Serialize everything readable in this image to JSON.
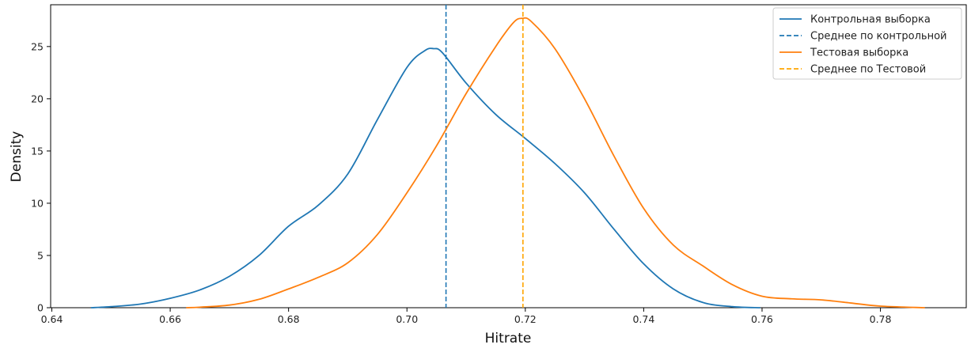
{
  "chart_data": {
    "type": "line",
    "xlabel": "Hitrate",
    "ylabel": "Density",
    "xlim": [
      0.6398,
      0.7945
    ],
    "ylim": [
      0,
      29
    ],
    "xticks": [
      0.64,
      0.66,
      0.68,
      0.7,
      0.72,
      0.74,
      0.76,
      0.78
    ],
    "xtick_labels": [
      "0.64",
      "0.66",
      "0.68",
      "0.70",
      "0.72",
      "0.74",
      "0.76",
      "0.78"
    ],
    "yticks": [
      0,
      5,
      10,
      15,
      20,
      25
    ],
    "ytick_labels": [
      "0",
      "5",
      "10",
      "15",
      "20",
      "25"
    ],
    "grid": false,
    "legend_position": "top-right",
    "series": [
      {
        "name": "Контрольная выборка",
        "style": "solid",
        "color": "#1f77b4",
        "x": [
          0.6466,
          0.65,
          0.655,
          0.66,
          0.665,
          0.67,
          0.675,
          0.68,
          0.685,
          0.69,
          0.695,
          0.7,
          0.703,
          0.7045,
          0.706,
          0.71,
          0.715,
          0.72,
          0.725,
          0.73,
          0.735,
          0.74,
          0.745,
          0.75,
          0.755,
          0.7597
        ],
        "y": [
          0.0,
          0.1,
          0.35,
          0.9,
          1.7,
          3.0,
          5.0,
          7.8,
          9.8,
          12.8,
          18.0,
          23.0,
          24.6,
          24.8,
          24.4,
          21.5,
          18.5,
          16.2,
          13.8,
          11.0,
          7.5,
          4.2,
          1.8,
          0.5,
          0.1,
          0.0
        ]
      },
      {
        "name": "Среднее по контрольной",
        "style": "dashed",
        "color": "#1f77b4",
        "vline_x": 0.7066
      },
      {
        "name": "Тестовая выборка",
        "style": "solid",
        "color": "#ff7f0e",
        "x": [
          0.6627,
          0.665,
          0.67,
          0.675,
          0.68,
          0.685,
          0.69,
          0.695,
          0.7,
          0.705,
          0.71,
          0.715,
          0.718,
          0.7195,
          0.721,
          0.725,
          0.73,
          0.735,
          0.74,
          0.745,
          0.75,
          0.755,
          0.76,
          0.765,
          0.77,
          0.775,
          0.78,
          0.7875
        ],
        "y": [
          0.0,
          0.05,
          0.25,
          0.8,
          1.8,
          2.9,
          4.3,
          7.0,
          11.0,
          15.5,
          20.5,
          25.0,
          27.3,
          27.7,
          27.4,
          24.8,
          20.0,
          14.5,
          9.5,
          6.0,
          4.0,
          2.2,
          1.1,
          0.85,
          0.75,
          0.45,
          0.15,
          0.0
        ]
      },
      {
        "name": "Среднее по Тестовой",
        "style": "dashed",
        "color": "#ffa500",
        "vline_x": 0.7196
      }
    ]
  }
}
